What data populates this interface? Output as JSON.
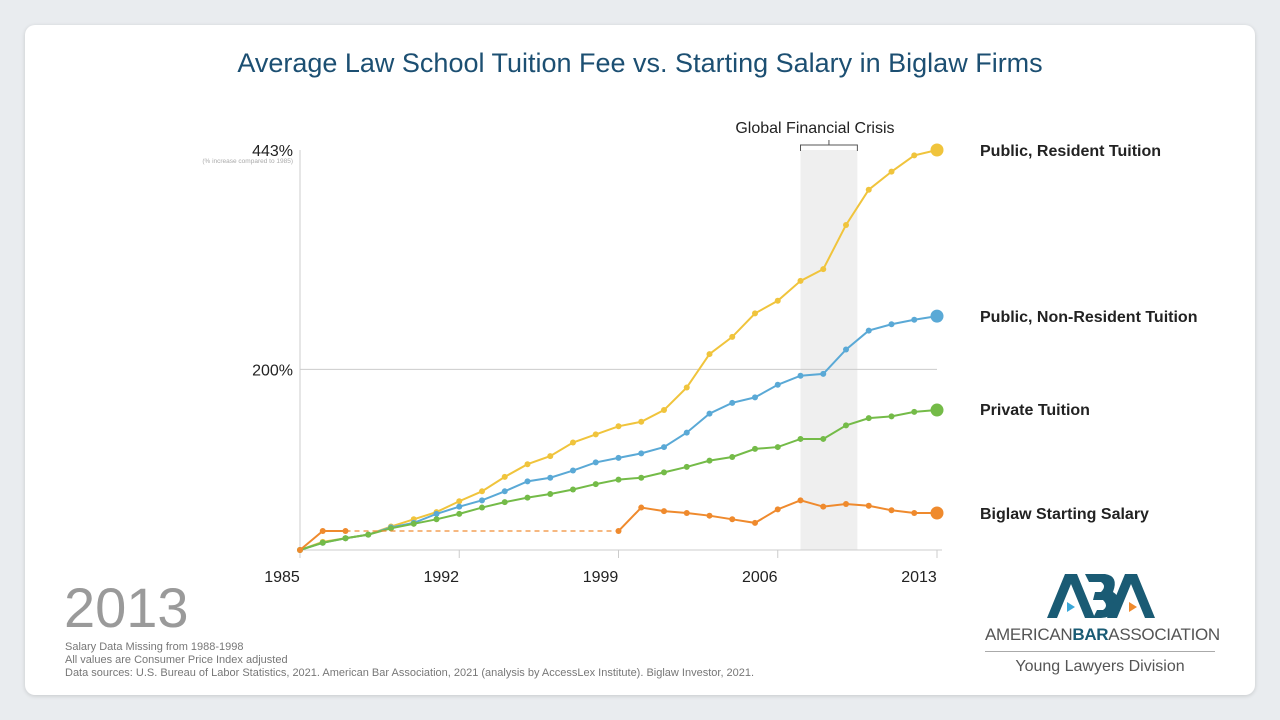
{
  "title": "Average Law School Tuition Fee vs. Starting Salary in Biglaw Firms",
  "current_year": "2013",
  "notes": [
    "Salary Data Missing from 1988-1998",
    "All values are Consumer Price Index adjusted",
    "Data sources: U.S. Bureau of Labor Statistics, 2021. American Bar Association, 2021 (analysis by AccessLex Institute). Biglaw Investor, 2021."
  ],
  "logo": {
    "mark": "ABA",
    "word1": "AMERICAN",
    "word2": "BAR",
    "word3": "ASSOCIATION",
    "division": "Young Lawyers Division"
  },
  "chart_data": {
    "type": "line",
    "title": "Average Law School Tuition Fee vs. Starting Salary in Biglaw Firms",
    "ylabel_note": "(% increase compared to 1985)",
    "y_ticks": [
      {
        "value": 443,
        "label": "443%"
      },
      {
        "value": 200,
        "label": "200%"
      }
    ],
    "x_ticks": [
      {
        "value": 1985,
        "label": "1985"
      },
      {
        "value": 1992,
        "label": "1992"
      },
      {
        "value": 1999,
        "label": "1999"
      },
      {
        "value": 2006,
        "label": "2006"
      },
      {
        "value": 2013,
        "label": "2013"
      }
    ],
    "xlim": [
      1985,
      2013
    ],
    "ylim": [
      0,
      443
    ],
    "annotation": {
      "label": "Global Financial Crisis",
      "x_start": 2007,
      "x_end": 2009.5
    },
    "x": [
      1985,
      1986,
      1987,
      1988,
      1989,
      1990,
      1991,
      1992,
      1993,
      1994,
      1995,
      1996,
      1997,
      1998,
      1999,
      2000,
      2001,
      2002,
      2003,
      2004,
      2005,
      2006,
      2007,
      2008,
      2009,
      2010,
      2011,
      2012,
      2013
    ],
    "series": [
      {
        "name": "Public, Resident Tuition",
        "color": "#f0c43c",
        "values": [
          0,
          9,
          13,
          17,
          26,
          34,
          42,
          54,
          65,
          81,
          95,
          104,
          119,
          128,
          137,
          142,
          155,
          180,
          217,
          236,
          262,
          276,
          298,
          311,
          360,
          399,
          419,
          437,
          443
        ]
      },
      {
        "name": "Public, Non-Resident Tuition",
        "color": "#5aa9d6",
        "values": [
          0,
          8,
          13,
          17,
          25,
          30,
          40,
          48,
          55,
          65,
          76,
          80,
          88,
          97,
          102,
          107,
          114,
          130,
          151,
          163,
          169,
          183,
          193,
          195,
          222,
          243,
          250,
          255,
          259
        ]
      },
      {
        "name": "Private Tuition",
        "color": "#74bb48",
        "values": [
          0,
          8,
          13,
          17,
          24,
          29,
          34,
          40,
          47,
          53,
          58,
          62,
          67,
          73,
          78,
          80,
          86,
          92,
          99,
          103,
          112,
          114,
          123,
          123,
          138,
          146,
          148,
          153,
          155
        ]
      },
      {
        "name": "Biglaw Starting Salary",
        "color": "#ef8a2d",
        "values": [
          0,
          21,
          21,
          null,
          null,
          null,
          null,
          null,
          null,
          null,
          null,
          null,
          null,
          null,
          21,
          47,
          43,
          41,
          38,
          34,
          30,
          45,
          55,
          48,
          51,
          49,
          44,
          41,
          41
        ]
      }
    ]
  }
}
